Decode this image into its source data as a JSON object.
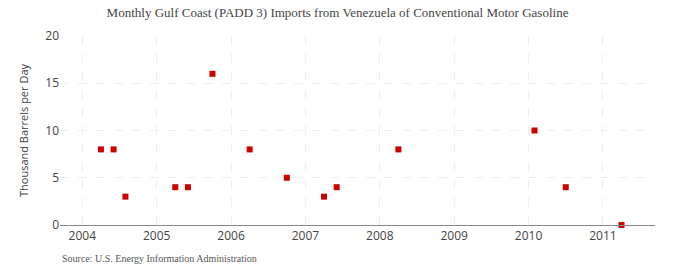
{
  "chart_data": {
    "type": "scatter",
    "title": "Monthly Gulf Coast (PADD 3) Imports from Venezuela of Conventional Motor Gasoline",
    "ylabel": "Thousand Barrels per Day",
    "annotations": [
      "Source: U.S. Energy Information Administration"
    ],
    "x": [
      2004.25,
      2004.42,
      2004.58,
      2005.25,
      2005.42,
      2005.75,
      2006.25,
      2006.75,
      2007.25,
      2007.42,
      2008.25,
      2010.08,
      2010.5,
      2011.25
    ],
    "values": [
      8,
      8,
      3,
      4,
      4,
      16,
      8,
      5,
      3,
      4,
      8,
      10,
      4,
      0
    ],
    "color": "#cc0000",
    "marker": "square",
    "grid": true,
    "xlim": [
      2003.7,
      2011.7
    ],
    "ylim": [
      0,
      20
    ],
    "xticks": [
      2004,
      2005,
      2006,
      2007,
      2008,
      2009,
      2010,
      2011
    ],
    "yticks": [
      0,
      5,
      10,
      15,
      20
    ]
  }
}
